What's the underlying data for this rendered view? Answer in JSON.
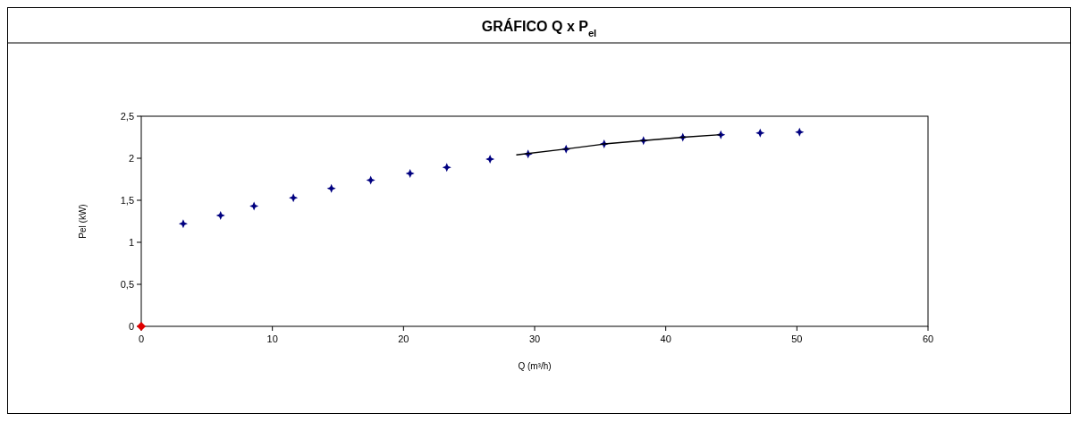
{
  "chart_data": {
    "type": "scatter",
    "title": "GRÁFICO Q x P$_{el}$",
    "xlabel": "Q (m³/h)",
    "ylabel": "Pel (kW)",
    "xlim": [
      0,
      60
    ],
    "xticks": [
      0,
      10,
      20,
      30,
      40,
      50,
      60
    ],
    "ylim": [
      0,
      2.5
    ],
    "yticks": [
      0,
      {
        "value": 0.5,
        "label": "0,5"
      },
      1,
      {
        "value": 1.5,
        "label": "1,5"
      },
      2,
      {
        "value": 2.5,
        "label": "2,5"
      }
    ],
    "grid": false,
    "series": [
      {
        "marker": "star",
        "color": "#000080",
        "x": [
          3.2,
          6.05,
          8.6,
          11.6,
          14.5,
          17.5,
          20.5,
          23.3,
          26.6,
          29.5,
          32.4,
          35.3,
          38.3,
          41.3,
          44.2,
          47.2,
          50.2
        ],
        "values": [
          1.22,
          1.32,
          1.43,
          1.53,
          1.64,
          1.74,
          1.82,
          1.89,
          1.99,
          2.05,
          2.11,
          2.17,
          2.21,
          2.25,
          2.28,
          2.3,
          2.31
        ]
      },
      {
        "type": "line",
        "color": "#000000",
        "line_style": "solid",
        "x": [
          28.6,
          32.4,
          35.3,
          38.3,
          41.3,
          44.2
        ],
        "values": [
          2.04,
          2.11,
          2.17,
          2.21,
          2.25,
          2.28
        ]
      },
      {
        "type": "scatter",
        "marker": "diamond",
        "color": "#e00000",
        "x": [
          0
        ],
        "values": [
          0
        ]
      }
    ]
  }
}
